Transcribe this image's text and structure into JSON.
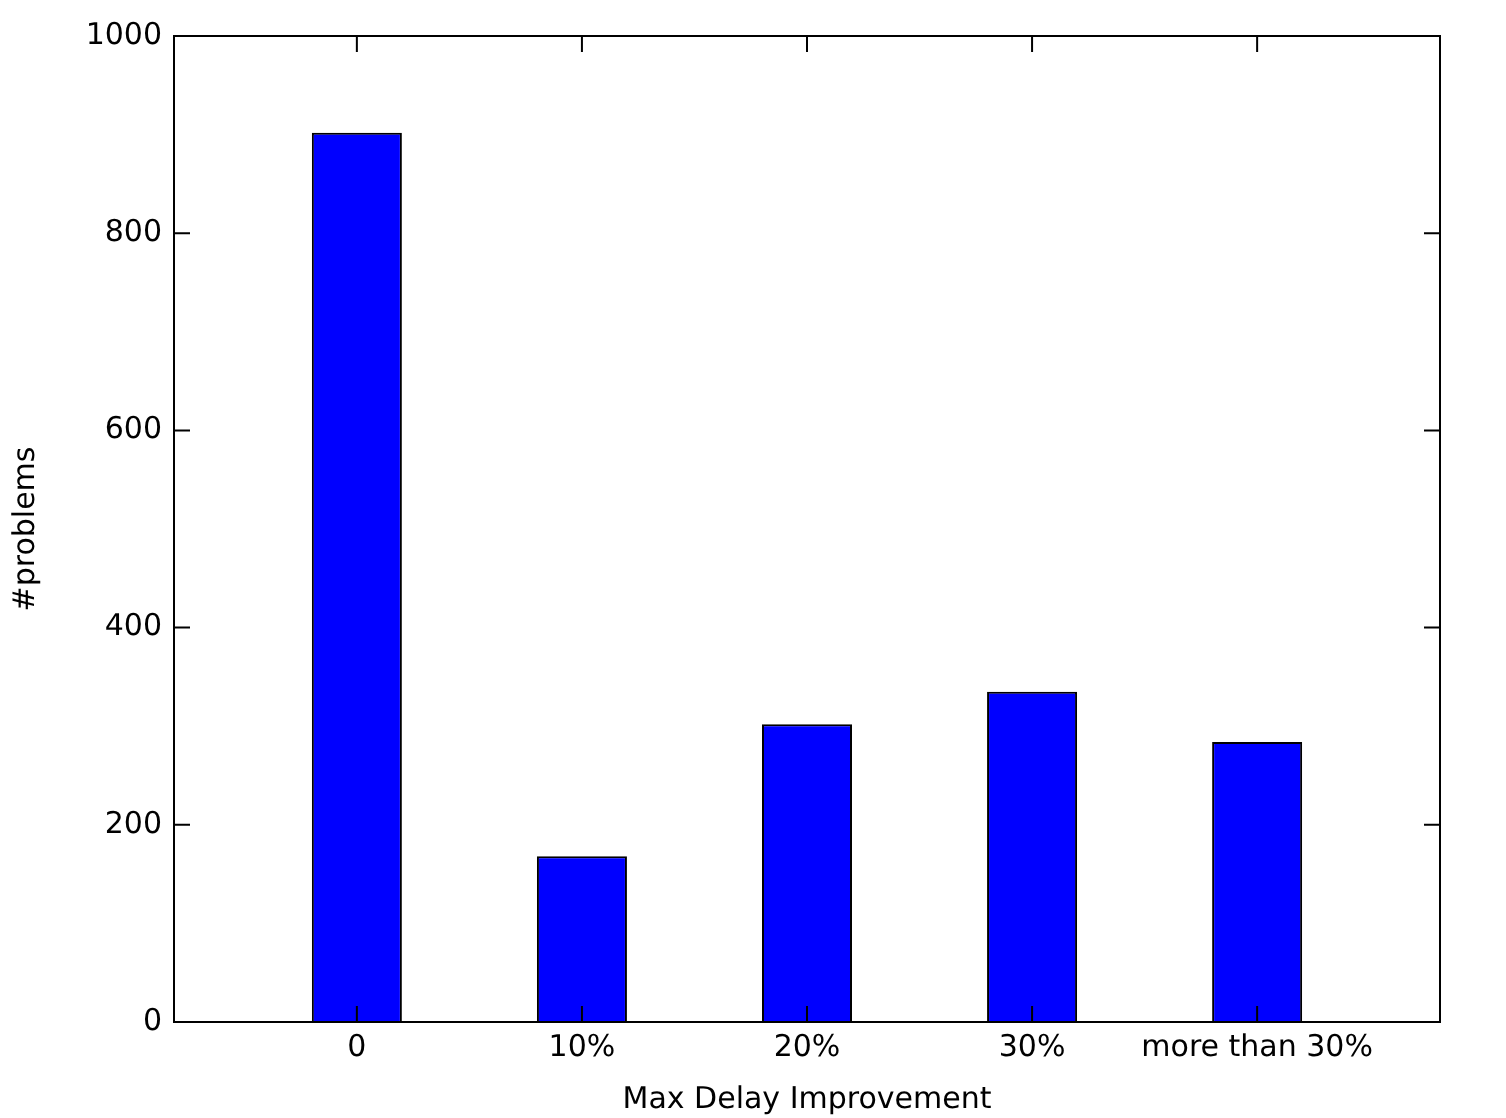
{
  "chart_data": {
    "type": "bar",
    "xlabel": "Max Delay Improvement",
    "ylabel": "#problems",
    "categories": [
      "0",
      "10%",
      "20%",
      "30%",
      "more than 30%"
    ],
    "values": [
      902,
      168,
      302,
      335,
      284
    ],
    "color": "#0000ff",
    "ylim": [
      0,
      1000
    ],
    "yticks": [
      0,
      200,
      400,
      600,
      800,
      1000
    ],
    "grid": false,
    "legend": false
  }
}
